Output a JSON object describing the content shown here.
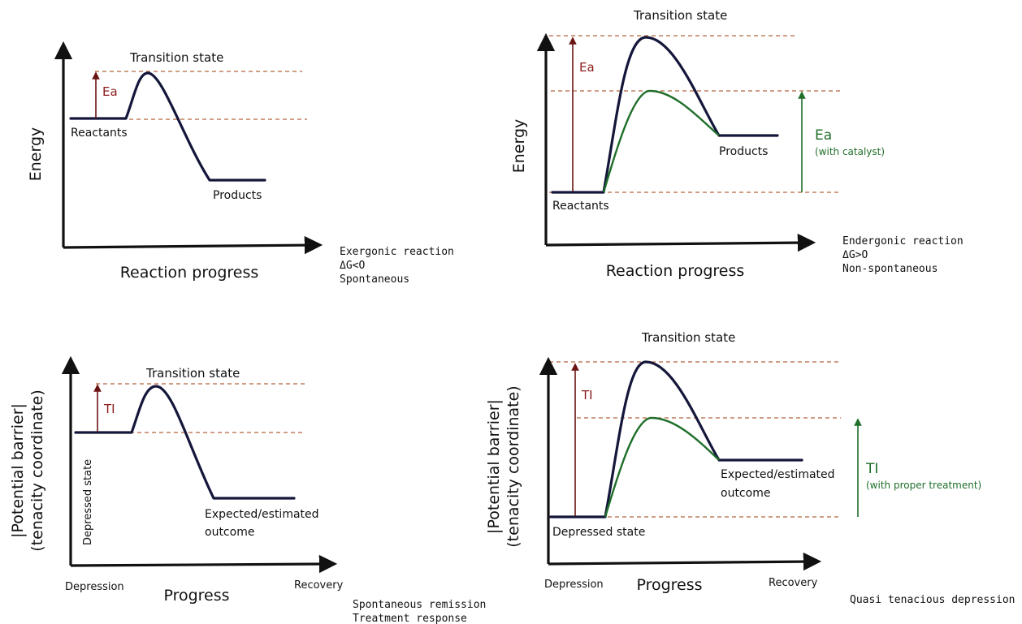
{
  "panel_a": {
    "y_axis": "Energy",
    "x_axis": "Reaction progress",
    "peak_label": "Transition state",
    "start_label": "Reactants",
    "end_label": "Products",
    "barrier_label": "Ea",
    "notes": [
      "Exergonic reaction",
      "ΔG<O",
      "Spontaneous"
    ]
  },
  "panel_b": {
    "y_axis": "Energy",
    "x_axis": "Reaction progress",
    "peak_label": "Transition state",
    "start_label": "Reactants",
    "end_label": "Products",
    "barrier_label": "Ea",
    "catalyst_barrier_label": "Ea",
    "catalyst_note": "(with catalyst)",
    "notes": [
      "Endergonic reaction",
      "ΔG>O",
      "Non-spontaneous"
    ]
  },
  "panel_c": {
    "y_axis_line1": "|Potential barrier|",
    "y_axis_line2": "(tenacity coordinate)",
    "x_axis": "Progress",
    "x_start": "Depression",
    "x_end": "Recovery",
    "peak_label": "Transition state",
    "start_label": "Depressed state",
    "end_label_line1": "Expected/estimated",
    "end_label_line2": "outcome",
    "barrier_label": "TI",
    "notes": [
      "Spontaneous remission",
      "Treatment response"
    ]
  },
  "panel_d": {
    "y_axis_line1": "|Potential barrier|",
    "y_axis_line2": "(tenacity coordinate)",
    "x_axis": "Progress",
    "x_start": "Depression",
    "x_end": "Recovery",
    "peak_label": "Transition state",
    "start_label": "Depressed state",
    "end_label_line1": "Expected/estimated",
    "end_label_line2": "outcome",
    "barrier_label": "TI",
    "treatment_barrier_label": "TI",
    "treatment_note": "(with proper treatment)",
    "notes": [
      "Quasi tenacious depression"
    ]
  },
  "colors": {
    "curve": "#14163a",
    "catalyst_curve": "#1f6e2a",
    "barrier_arrow": "#6b1414",
    "dashed_guides": "#b5643a"
  }
}
